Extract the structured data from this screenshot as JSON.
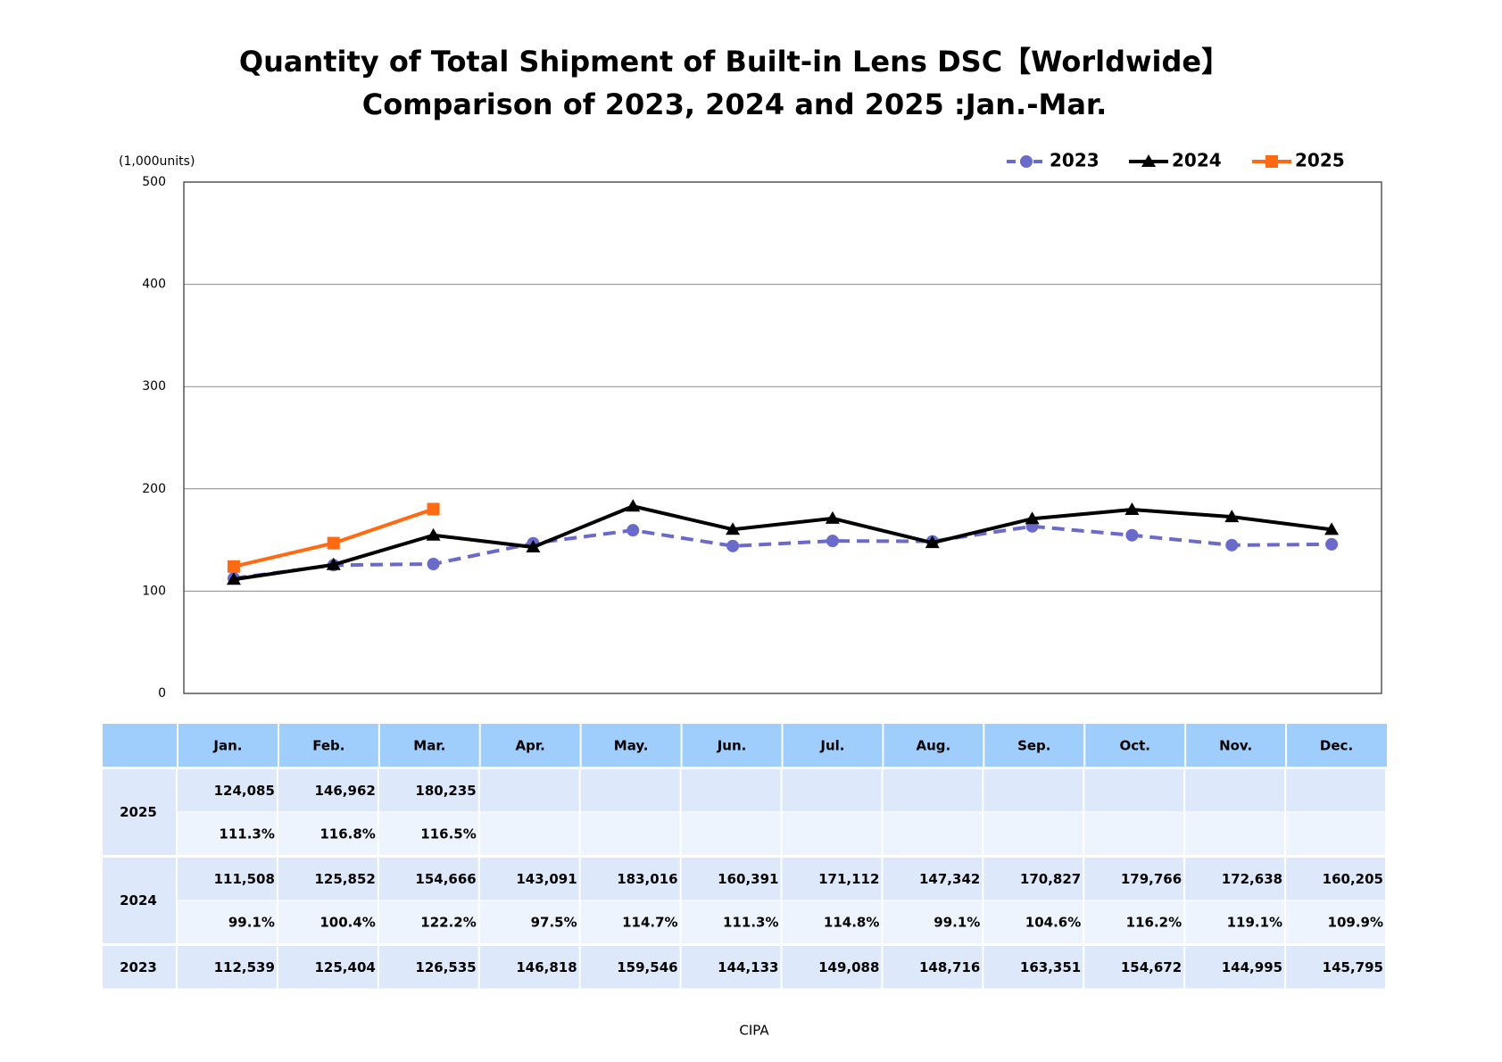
{
  "chart_data": {
    "type": "line",
    "title": "Quantity of Total Shipment of Built-in Lens DSC【Worldwide】",
    "subtitle": "Comparison of 2023, 2024 and 2025 :Jan.-Mar.",
    "y_label": "(1,000units)",
    "source": "CIPA",
    "categories": [
      "Jan.",
      "Feb.",
      "Mar.",
      "Apr.",
      "May.",
      "Jun.",
      "Jul.",
      "Aug.",
      "Sep.",
      "Oct.",
      "Nov.",
      "Dec."
    ],
    "ylim": [
      0,
      500
    ],
    "yticks": [
      0,
      100,
      200,
      300,
      400,
      500
    ],
    "grid": true,
    "legend": "top-right",
    "series": [
      {
        "name": "2023",
        "color": "#6a6acb",
        "dash": true,
        "marker": "circle",
        "values": [
          112.539,
          125.404,
          126.535,
          146.818,
          159.546,
          144.133,
          149.088,
          148.716,
          163.351,
          154.672,
          144.995,
          145.795
        ],
        "value_labels": [
          "112,539",
          "125,404",
          "126,535",
          "146,818",
          "159,546",
          "144,133",
          "149,088",
          "148,716",
          "163,351",
          "154,672",
          "144,995",
          "145,795"
        ]
      },
      {
        "name": "2024",
        "color": "#000000",
        "dash": false,
        "marker": "triangle",
        "values": [
          111.508,
          125.852,
          154.666,
          143.091,
          183.016,
          160.391,
          171.112,
          147.342,
          170.827,
          179.766,
          172.638,
          160.205
        ],
        "value_labels": [
          "111,508",
          "125,852",
          "154,666",
          "143,091",
          "183,016",
          "160,391",
          "171,112",
          "147,342",
          "170,827",
          "179,766",
          "172,638",
          "160,205"
        ],
        "ratios": [
          "99.1%",
          "100.4%",
          "122.2%",
          "97.5%",
          "114.7%",
          "111.3%",
          "114.8%",
          "99.1%",
          "104.6%",
          "116.2%",
          "119.1%",
          "109.9%"
        ]
      },
      {
        "name": "2025",
        "color": "#ff6a13",
        "dash": false,
        "marker": "square",
        "values": [
          124.085,
          146.962,
          180.235,
          null,
          null,
          null,
          null,
          null,
          null,
          null,
          null,
          null
        ],
        "value_labels": [
          "124,085",
          "146,962",
          "180,235",
          null,
          null,
          null,
          null,
          null,
          null,
          null,
          null,
          null
        ],
        "ratios": [
          "111.3%",
          "116.8%",
          "116.5%",
          null,
          null,
          null,
          null,
          null,
          null,
          null,
          null,
          null
        ]
      }
    ]
  }
}
